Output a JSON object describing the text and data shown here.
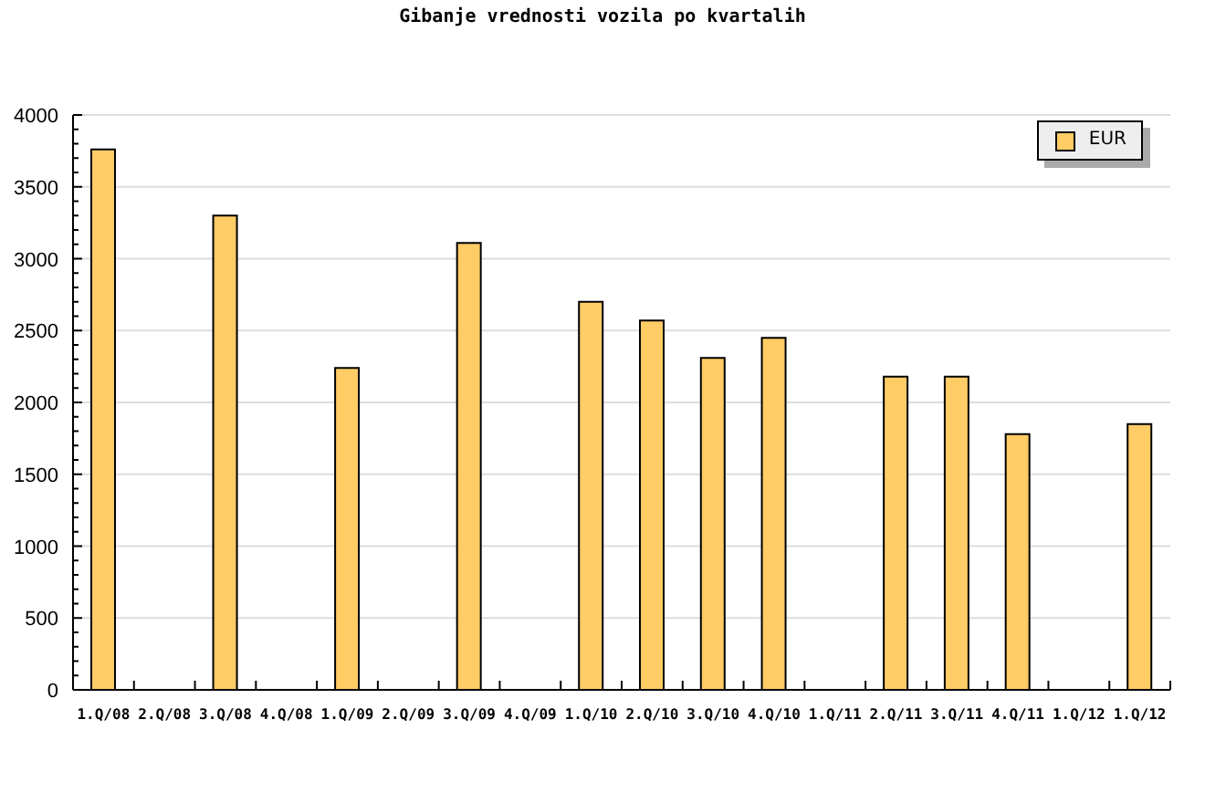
{
  "chart_data": {
    "type": "bar",
    "title": "Gibanje vrednosti vozila po kvartalih",
    "categories": [
      "1.Q/08",
      "2.Q/08",
      "3.Q/08",
      "4.Q/08",
      "1.Q/09",
      "2.Q/09",
      "3.Q/09",
      "4.Q/09",
      "1.Q/10",
      "2.Q/10",
      "3.Q/10",
      "4.Q/10",
      "1.Q/11",
      "2.Q/11",
      "3.Q/11",
      "4.Q/11",
      "1.Q/12",
      "1.Q/12"
    ],
    "series": [
      {
        "name": "EUR",
        "color": "#ffcc66",
        "values": [
          3760,
          null,
          3300,
          null,
          2240,
          null,
          3110,
          null,
          2700,
          2570,
          2310,
          2450,
          null,
          2180,
          2180,
          1780,
          null,
          1850
        ]
      }
    ],
    "ylim": [
      0,
      4000
    ],
    "yticks": [
      0,
      {
        "value": 100,
        "label": null
      },
      {
        "value": 200,
        "label": null
      },
      {
        "value": 300,
        "label": null
      },
      {
        "value": 400,
        "label": null
      },
      500,
      {
        "value": 600,
        "label": null
      },
      {
        "value": 700,
        "label": null
      },
      {
        "value": 800,
        "label": null
      },
      {
        "value": 900,
        "label": null
      },
      1000,
      {
        "value": 1100,
        "label": null
      },
      {
        "value": 1200,
        "label": null
      },
      {
        "value": 1300,
        "label": null
      },
      {
        "value": 1400,
        "label": null
      },
      1500,
      {
        "value": 1600,
        "label": null
      },
      {
        "value": 1700,
        "label": null
      },
      {
        "value": 1800,
        "label": null
      },
      {
        "value": 1900,
        "label": null
      },
      2000,
      {
        "value": 2100,
        "label": null
      },
      {
        "value": 2200,
        "label": null
      },
      {
        "value": 2300,
        "label": null
      },
      {
        "value": 2400,
        "label": null
      },
      2500,
      {
        "value": 2600,
        "label": null
      },
      {
        "value": 2700,
        "label": null
      },
      {
        "value": 2800,
        "label": null
      },
      {
        "value": 2900,
        "label": null
      },
      3000,
      {
        "value": 3100,
        "label": null
      },
      {
        "value": 3200,
        "label": null
      },
      {
        "value": 3300,
        "label": null
      },
      {
        "value": 3400,
        "label": null
      },
      3500,
      {
        "value": 3600,
        "label": null
      },
      {
        "value": 3700,
        "label": null
      },
      {
        "value": 3800,
        "label": null
      },
      {
        "value": 3900,
        "label": null
      },
      4000
    ],
    "grid": "y",
    "legend": "top right"
  }
}
